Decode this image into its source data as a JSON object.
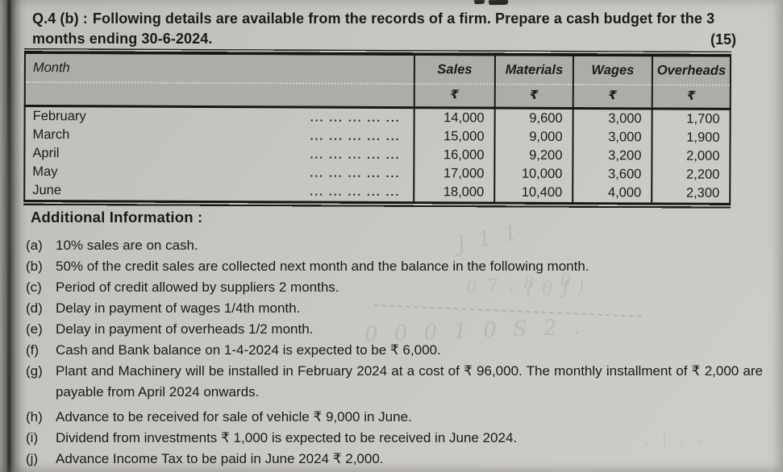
{
  "question": {
    "label": "Q.4 (b) :",
    "text": "Following details are available from the records of a firm. Prepare a cash budget for the 3 months ending 30-6-2024.",
    "marks": "(15)"
  },
  "table": {
    "columns": [
      {
        "label": "Month",
        "unit": ""
      },
      {
        "label": "Sales",
        "unit": "₹"
      },
      {
        "label": "Materials",
        "unit": "₹"
      },
      {
        "label": "Wages",
        "unit": "₹"
      },
      {
        "label": "Overheads",
        "unit": "₹"
      }
    ],
    "dots": "... ... ... ... ...",
    "rows": [
      {
        "month": "February",
        "sales": "14,000",
        "materials": "9,600",
        "wages": "3,000",
        "overheads": "1,700"
      },
      {
        "month": "March",
        "sales": "15,000",
        "materials": "9,000",
        "wages": "3,000",
        "overheads": "1,900"
      },
      {
        "month": "April",
        "sales": "16,000",
        "materials": "9,200",
        "wages": "3,200",
        "overheads": "2,000"
      },
      {
        "month": "May",
        "sales": "17,000",
        "materials": "10,000",
        "wages": "3,600",
        "overheads": "2,200"
      },
      {
        "month": "June",
        "sales": "18,000",
        "materials": "10,400",
        "wages": "4,000",
        "overheads": "2,300"
      }
    ]
  },
  "additional_info": {
    "heading": "Additional Information :",
    "items": [
      {
        "label": "(a)",
        "text": "10% sales are on cash."
      },
      {
        "label": "(b)",
        "text": "50% of the credit sales are collected next month and the balance in the following month."
      },
      {
        "label": "(c)",
        "text": "Period of credit allowed by suppliers 2 months."
      },
      {
        "label": "(d)",
        "text": "Delay in payment of wages 1/4th month."
      },
      {
        "label": "(e)",
        "text": "Delay in payment of overheads 1/2 month."
      },
      {
        "label": "(f)",
        "text": "Cash and Bank balance on 1-4-2024 is expected to be ₹ 6,000."
      },
      {
        "label": "(g)",
        "text": "Plant and Machinery will be installed in February 2024 at a cost of ₹ 96,000. The monthly installment of ₹ 2,000 are payable from April 2024 onwards."
      },
      {
        "label": "(h)",
        "text": "Advance to be received for sale of vehicle ₹ 9,000 in June."
      },
      {
        "label": "(i)",
        "text": "Dividend from investments ₹ 1,000 is expected to be received in June 2024."
      },
      {
        "label": "(j)",
        "text": "Advance Income Tax to be paid in June 2024 ₹ 2,000."
      }
    ]
  },
  "ghost_marks": [
    {
      "text": "J 1 1"
    },
    {
      "text": "0 7 , 8 . 0"
    },
    {
      "text": "( 0 J )"
    },
    {
      "text": "0 0 0 1 0 S 2 ."
    },
    {
      "text": ", , | , ,"
    }
  ],
  "colors": {
    "paper": "#c9c7c3",
    "table_header_bg": "#aeaca8",
    "ink": "#1a1a1a",
    "rule": "#161616"
  }
}
